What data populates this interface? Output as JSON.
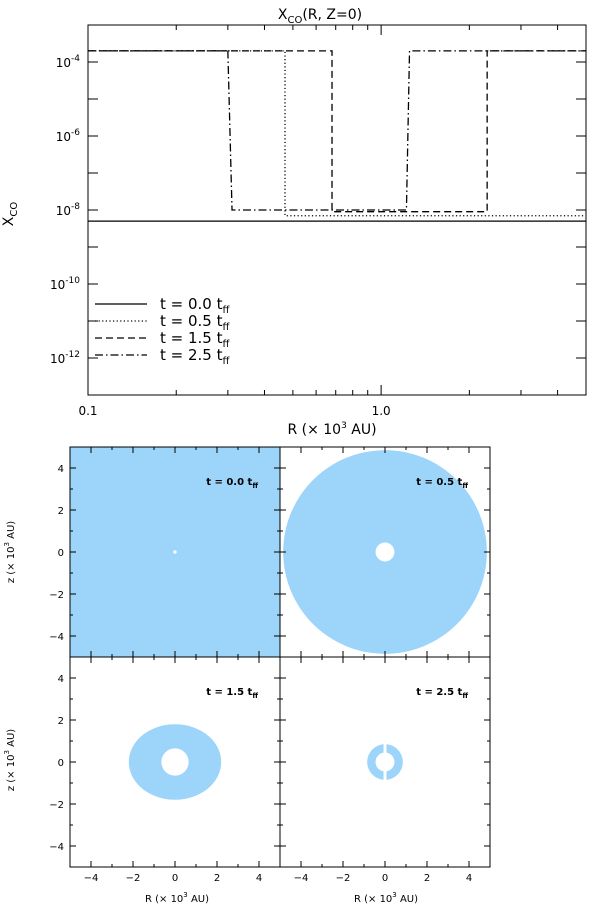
{
  "chart_data": [
    {
      "type": "line",
      "title_main": "X",
      "title_sub": "CO",
      "title_rest": "(R, Z=0)",
      "xlabel_main": "R  (× 10",
      "xlabel_sup": "3",
      "xlabel_rest": " AU)",
      "ylabel_main": "X",
      "ylabel_sub": "CO",
      "x_scale": "log",
      "y_scale": "log",
      "xlim": [
        0.1,
        5.0
      ],
      "ylim": [
        1e-13,
        0.001
      ],
      "xticks": [
        {
          "value": 0.1,
          "label": "0.1"
        },
        {
          "value": 1.0,
          "label": "1.0"
        }
      ],
      "yticks": [
        {
          "value": 0.0001,
          "base": "10",
          "exp": "-4"
        },
        {
          "value": 1e-06,
          "base": "10",
          "exp": "-6"
        },
        {
          "value": 1e-08,
          "base": "10",
          "exp": "-8"
        },
        {
          "value": 1e-10,
          "base": "10",
          "exp": "-10"
        },
        {
          "value": 1e-12,
          "base": "10",
          "exp": "-12"
        }
      ],
      "legend_position": "bottom-left",
      "series": [
        {
          "label_main": "t  =  0.0  t",
          "label_sub": "ff",
          "style": "solid",
          "points": [
            [
              0.1,
              5e-09
            ],
            [
              5.0,
              5e-09
            ]
          ]
        },
        {
          "label_main": "t  =  0.5  t",
          "label_sub": "ff",
          "style": "dotted",
          "points": [
            [
              0.1,
              0.0002
            ],
            [
              0.47,
              0.0002
            ],
            [
              0.47,
              7e-09
            ],
            [
              5.0,
              7e-09
            ]
          ]
        },
        {
          "label_main": "t  =  1.5  t",
          "label_sub": "ff",
          "style": "dashed",
          "points": [
            [
              0.1,
              0.0002
            ],
            [
              0.68,
              0.0002
            ],
            [
              0.68,
              9e-09
            ],
            [
              2.3,
              9e-09
            ],
            [
              2.3,
              0.0002
            ],
            [
              5.0,
              0.0002
            ]
          ]
        },
        {
          "label_main": "t  =  2.5  t",
          "label_sub": "ff",
          "style": "dashdot",
          "points": [
            [
              0.1,
              0.0002
            ],
            [
              0.3,
              0.0002
            ],
            [
              0.31,
              1e-08
            ],
            [
              1.22,
              1e-08
            ],
            [
              1.25,
              0.0002
            ],
            [
              5.0,
              0.0002
            ]
          ]
        }
      ]
    },
    {
      "type": "heatmap",
      "xlim": [
        -5,
        5
      ],
      "ylim": [
        -5,
        5
      ],
      "ticks": [
        -4,
        -2,
        0,
        2,
        4
      ],
      "ylabel_main": "z  (× 10",
      "ylabel_sup": "3",
      "ylabel_rest": " AU)",
      "xlabel_main": "R  (× 10",
      "xlabel_sup": "3",
      "xlabel_rest": " AU)",
      "fill_color": "#9dd5fa",
      "panels": [
        {
          "label_main": "t = 0.0 t",
          "label_sub": "ff",
          "region": "square",
          "outer_radius": 4.75,
          "inner_radius": 0.08
        },
        {
          "label_main": "t = 0.5 t",
          "label_sub": "ff",
          "region": "disk",
          "outer_radius": 4.85,
          "inner_radius": 0.45
        },
        {
          "label_main": "t = 1.5 t",
          "label_sub": "ff",
          "region": "oval-ring",
          "outer_rx": 2.2,
          "outer_ry": 1.8,
          "inner_radius": 0.65
        },
        {
          "label_main": "t = 2.5 t",
          "label_sub": "ff",
          "region": "crescents",
          "outer_radius": 0.85,
          "inner_radius": 0.45
        }
      ]
    }
  ]
}
